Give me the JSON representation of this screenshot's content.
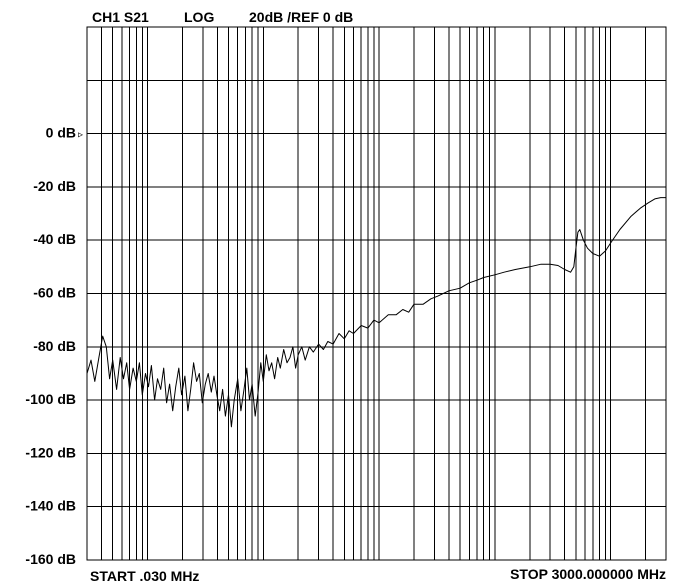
{
  "header": {
    "channel": "CH1 S21",
    "format": "LOG",
    "scale_ref": "20dB /REF 0 dB"
  },
  "footer": {
    "start": "START .030 MHz",
    "stop": "STOP 3000.000000 MHz"
  },
  "colors": {
    "trace": "#000000",
    "grid": "#000000",
    "background": "#ffffff"
  },
  "chart_data": {
    "type": "line",
    "title": "",
    "xlabel": "",
    "ylabel": "",
    "xscale": "log",
    "xlim_mhz": [
      0.03,
      3000
    ],
    "ylim": [
      -160,
      40
    ],
    "grid": true,
    "reference_level": 0,
    "reference_marker": "▹",
    "yticks": [
      {
        "value": 0,
        "label": "0 dB"
      },
      {
        "value": -20,
        "label": "-20 dB"
      },
      {
        "value": -40,
        "label": "-40 dB"
      },
      {
        "value": -60,
        "label": "-60 dB"
      },
      {
        "value": -80,
        "label": "-80 dB"
      },
      {
        "value": -100,
        "label": "-100 dB"
      },
      {
        "value": -120,
        "label": "-120 dB"
      },
      {
        "value": -140,
        "label": "-140 dB"
      },
      {
        "value": -160,
        "label": "-160 dB"
      }
    ],
    "series": [
      {
        "points": [
          [
            0.03,
            -90
          ],
          [
            0.0325,
            -85
          ],
          [
            0.035,
            -93
          ],
          [
            0.038,
            -84
          ],
          [
            0.041,
            -76
          ],
          [
            0.044,
            -80
          ],
          [
            0.047,
            -92
          ],
          [
            0.05,
            -85
          ],
          [
            0.054,
            -96
          ],
          [
            0.058,
            -84
          ],
          [
            0.062,
            -92
          ],
          [
            0.066,
            -86
          ],
          [
            0.07,
            -96
          ],
          [
            0.075,
            -88
          ],
          [
            0.08,
            -93
          ],
          [
            0.085,
            -86
          ],
          [
            0.09,
            -98
          ],
          [
            0.096,
            -90
          ],
          [
            0.102,
            -95
          ],
          [
            0.108,
            -87
          ],
          [
            0.115,
            -100
          ],
          [
            0.122,
            -92
          ],
          [
            0.13,
            -96
          ],
          [
            0.138,
            -88
          ],
          [
            0.146,
            -101
          ],
          [
            0.155,
            -94
          ],
          [
            0.165,
            -104
          ],
          [
            0.175,
            -95
          ],
          [
            0.186,
            -88
          ],
          [
            0.197,
            -98
          ],
          [
            0.21,
            -91
          ],
          [
            0.223,
            -104
          ],
          [
            0.236,
            -96
          ],
          [
            0.25,
            -86
          ],
          [
            0.265,
            -93
          ],
          [
            0.28,
            -90
          ],
          [
            0.297,
            -101
          ],
          [
            0.315,
            -94
          ],
          [
            0.334,
            -90
          ],
          [
            0.355,
            -97
          ],
          [
            0.375,
            -91
          ],
          [
            0.4,
            -99
          ],
          [
            0.42,
            -104
          ],
          [
            0.445,
            -96
          ],
          [
            0.47,
            -106
          ],
          [
            0.5,
            -98
          ],
          [
            0.53,
            -110
          ],
          [
            0.56,
            -100
          ],
          [
            0.6,
            -92
          ],
          [
            0.64,
            -104
          ],
          [
            0.68,
            -96
          ],
          [
            0.72,
            -88
          ],
          [
            0.76,
            -100
          ],
          [
            0.8,
            -94
          ],
          [
            0.85,
            -106
          ],
          [
            0.9,
            -97
          ],
          [
            0.95,
            -86
          ],
          [
            1.0,
            -93
          ],
          [
            1.06,
            -83
          ],
          [
            1.12,
            -89
          ],
          [
            1.18,
            -86
          ],
          [
            1.25,
            -92
          ],
          [
            1.33,
            -84
          ],
          [
            1.4,
            -88
          ],
          [
            1.5,
            -81
          ],
          [
            1.6,
            -86
          ],
          [
            1.7,
            -84
          ],
          [
            1.8,
            -80
          ],
          [
            1.9,
            -88
          ],
          [
            2.0,
            -83
          ],
          [
            2.15,
            -80
          ],
          [
            2.3,
            -85
          ],
          [
            2.5,
            -80
          ],
          [
            2.7,
            -82
          ],
          [
            3.0,
            -79
          ],
          [
            3.3,
            -81
          ],
          [
            3.6,
            -78
          ],
          [
            4.0,
            -79
          ],
          [
            4.5,
            -75
          ],
          [
            5.0,
            -77
          ],
          [
            5.5,
            -74
          ],
          [
            6.0,
            -75
          ],
          [
            7.0,
            -72
          ],
          [
            8.0,
            -73
          ],
          [
            9.0,
            -70
          ],
          [
            10,
            -71
          ],
          [
            12,
            -68
          ],
          [
            14,
            -68
          ],
          [
            16,
            -66
          ],
          [
            18,
            -67
          ],
          [
            20,
            -64
          ],
          [
            24,
            -64
          ],
          [
            28,
            -62
          ],
          [
            32,
            -61
          ],
          [
            40,
            -59
          ],
          [
            50,
            -58
          ],
          [
            60,
            -56
          ],
          [
            70,
            -55
          ],
          [
            80,
            -54
          ],
          [
            100,
            -53
          ],
          [
            120,
            -52
          ],
          [
            150,
            -51
          ],
          [
            200,
            -50
          ],
          [
            250,
            -49
          ],
          [
            300,
            -49
          ],
          [
            350,
            -49.5
          ],
          [
            400,
            -51
          ],
          [
            450,
            -52
          ],
          [
            480,
            -50
          ],
          [
            500,
            -43
          ],
          [
            520,
            -37
          ],
          [
            540,
            -36
          ],
          [
            580,
            -40
          ],
          [
            630,
            -43
          ],
          [
            700,
            -45
          ],
          [
            800,
            -46
          ],
          [
            900,
            -44
          ],
          [
            1000,
            -41
          ],
          [
            1200,
            -36
          ],
          [
            1500,
            -31
          ],
          [
            1800,
            -28
          ],
          [
            2100,
            -26
          ],
          [
            2400,
            -24.5
          ],
          [
            2700,
            -24
          ],
          [
            3000,
            -24
          ]
        ]
      }
    ]
  }
}
